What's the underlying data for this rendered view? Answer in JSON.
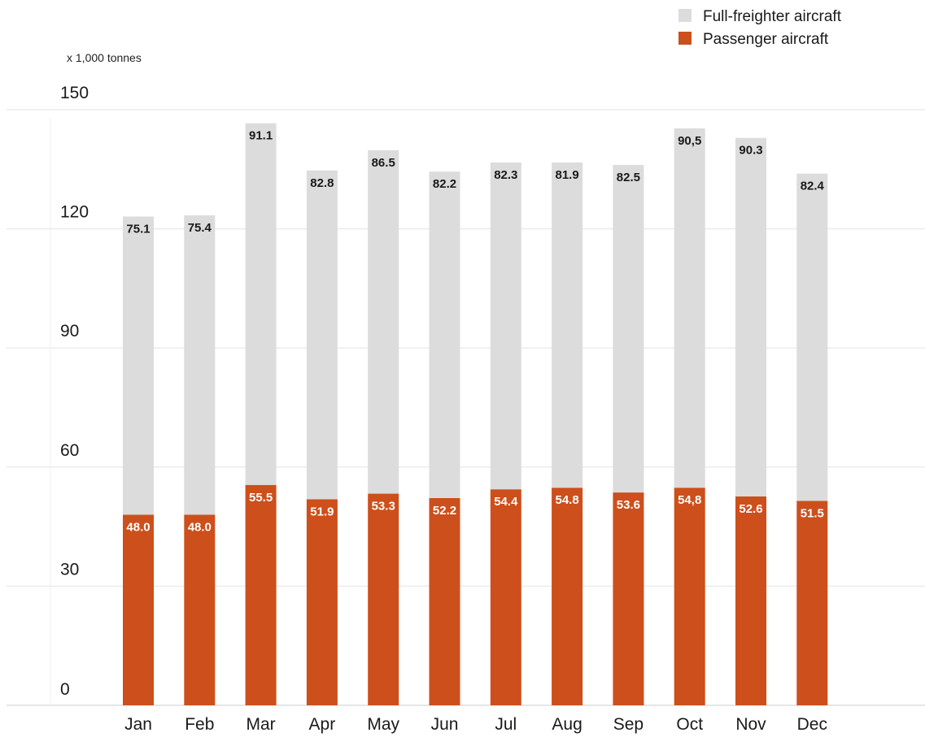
{
  "chart_data": {
    "type": "bar",
    "stacked": true,
    "unit_label": "x 1,000 tonnes",
    "categories": [
      "Jan",
      "Feb",
      "Mar",
      "Apr",
      "May",
      "Jun",
      "Jul",
      "Aug",
      "Sep",
      "Oct",
      "Nov",
      "Dec"
    ],
    "series": [
      {
        "name": "Passenger aircraft",
        "color": "#cd4f1b",
        "values": [
          48.0,
          48.0,
          55.5,
          51.9,
          53.3,
          52.2,
          54.4,
          54.8,
          53.6,
          54.8,
          52.6,
          51.5
        ],
        "labels": [
          "48.0",
          "48.0",
          "55.5",
          "51.9",
          "53.3",
          "52.2",
          "54.4",
          "54.8",
          "53.6",
          "54,8",
          "52.6",
          "51.5"
        ]
      },
      {
        "name": "Full-freighter aircraft",
        "color": "#dcdcdc",
        "values": [
          75.1,
          75.4,
          91.1,
          82.8,
          86.5,
          82.2,
          82.3,
          81.9,
          82.5,
          90.5,
          90.3,
          82.4
        ],
        "labels": [
          "75.1",
          "75.4",
          "91.1",
          "82.8",
          "86.5",
          "82.2",
          "82.3",
          "81.9",
          "82.5",
          "90,5",
          "90.3",
          "82.4"
        ]
      }
    ],
    "yticks": [
      "0",
      "30",
      "60",
      "90",
      "120",
      "150"
    ],
    "ylim": [
      0,
      150
    ],
    "grid": true,
    "legend_position": "top-right",
    "xlabel": "",
    "ylabel": "",
    "title": ""
  }
}
